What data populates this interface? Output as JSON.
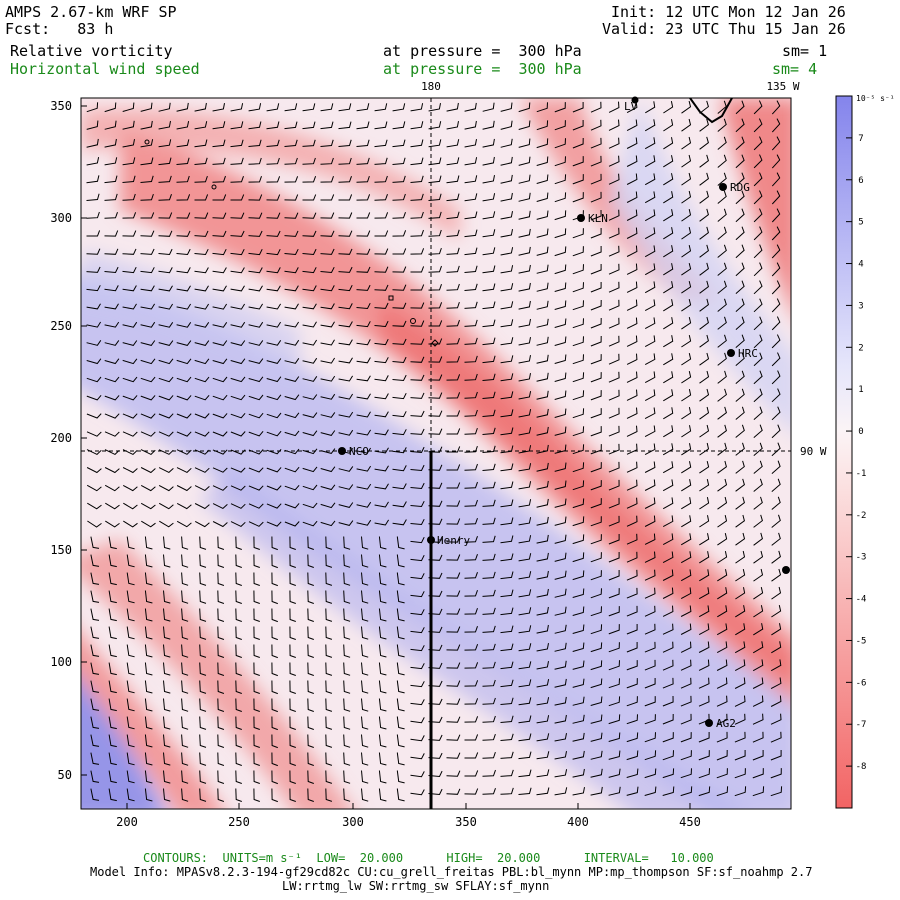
{
  "header": {
    "model": "AMPS 2.67-km WRF SP",
    "forecast": "Fcst:   83 h",
    "init": "Init: 12 UTC Mon 12 Jan 26",
    "valid": "Valid: 23 UTC Thu 15 Jan 26",
    "field1_name": "Relative vorticity",
    "field1_level": "at pressure =  300 hPa",
    "field1_sm": "sm= 1",
    "field2_name": "Horizontal wind speed",
    "field2_level": "at pressure =  300 hPa",
    "field2_sm": "sm= 4"
  },
  "colors": {
    "title": "#000000",
    "contour_text": "#1a8a1a",
    "positive_vorticity": "#7c7ce8",
    "negative_vorticity": "#f07070",
    "barb": "#000000"
  },
  "map": {
    "x_ticks": [
      "200",
      "250",
      "300",
      "350",
      "400",
      "450"
    ],
    "y_ticks": [
      "50",
      "100",
      "150",
      "200",
      "250",
      "300",
      "350"
    ],
    "lon_labels": {
      "top_a": "180",
      "top_b": "135 W",
      "right": "90 W"
    },
    "stations": [
      {
        "name": "RDG"
      },
      {
        "name": "KLN"
      },
      {
        "name": "HRC"
      },
      {
        "name": "NCO"
      },
      {
        "name": "Henry"
      },
      {
        "name": "AG2"
      },
      {
        "name": "LV"
      }
    ]
  },
  "colorbar": {
    "unit": "10⁻⁵ s⁻¹",
    "labels": [
      "7",
      "6",
      "5",
      "4",
      "3",
      "2",
      "1",
      "0",
      "-1",
      "-2",
      "-3",
      "-4",
      "-5",
      "-6",
      "-7",
      "-8"
    ],
    "min": -9,
    "max": 8
  },
  "footer": {
    "contours": "CONTOURS:  UNITS=m s⁻¹  LOW=  20.000      HIGH=  20.000      INTERVAL=   10.000",
    "model_info": "Model Info: MPASv8.2.3-194-gf29cd82c CU:cu_grell_freitas PBL:bl_mynn MP:mp_thompson SF:sf_noahmp 2.7",
    "model_info2": "LW:rrtmg_lw SW:rrtmg_sw SFLAY:sf_mynn"
  }
}
